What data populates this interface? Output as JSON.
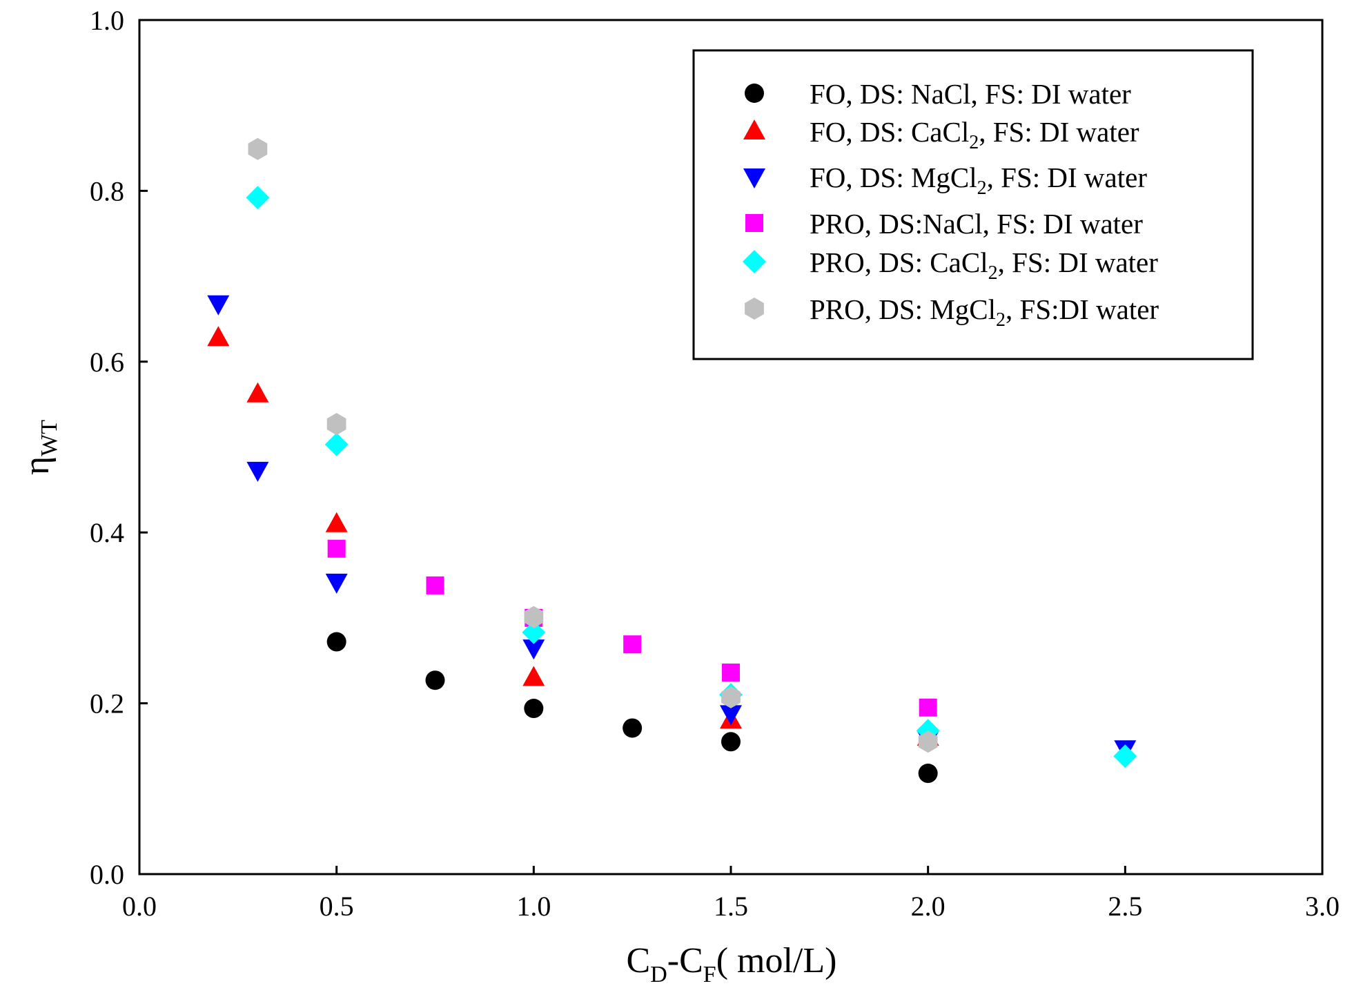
{
  "chart_data": {
    "type": "scatter",
    "title": "",
    "xlabel": {
      "main": "C",
      "sub1": "D",
      "mid": "-C",
      "sub2": "F",
      "tail": "( mol/L)"
    },
    "ylabel": {
      "main": "η",
      "sub": "WT"
    },
    "xlim": [
      0,
      3.0
    ],
    "ylim": [
      0,
      1.0
    ],
    "xticks": [
      "0.0",
      "0.5",
      "1.0",
      "1.5",
      "2.0",
      "2.5",
      "3.0"
    ],
    "yticks": [
      "0.0",
      "0.2",
      "0.4",
      "0.6",
      "0.8",
      "1.0"
    ],
    "grid": false,
    "legend_position": "top-right",
    "series": [
      {
        "name": "FO, DS: NaCl, FS: DI water",
        "label": {
          "pre": "FO, DS: NaCl, FS: DI water",
          "sub": "",
          "post": ""
        },
        "marker": "circle",
        "color": "#000000",
        "x": [
          0.5,
          0.75,
          1.0,
          1.25,
          1.5,
          2.0
        ],
        "y": [
          0.272,
          0.227,
          0.194,
          0.171,
          0.155,
          0.118
        ]
      },
      {
        "name": "FO, DS: CaCl2, FS: DI water",
        "label": {
          "pre": "FO, DS: CaCl",
          "sub": "2",
          "post": ", FS: DI water"
        },
        "marker": "triangle-up",
        "color": "#ff0000",
        "x": [
          0.2,
          0.3,
          0.5,
          1.0,
          1.5,
          2.0
        ],
        "y": [
          0.628,
          0.562,
          0.41,
          0.23,
          0.18,
          0.16
        ]
      },
      {
        "name": "FO, DS: MgCl2, FS: DI water",
        "label": {
          "pre": "FO, DS: MgCl",
          "sub": "2",
          "post": ", FS: DI water"
        },
        "marker": "triangle-down",
        "color": "#0000ff",
        "x": [
          0.2,
          0.3,
          0.5,
          1.0,
          1.5,
          2.0,
          2.5
        ],
        "y": [
          0.668,
          0.473,
          0.342,
          0.265,
          0.188,
          0.158,
          0.147
        ]
      },
      {
        "name": "PRO, DS:NaCl, FS: DI water",
        "label": {
          "pre": "PRO, DS:NaCl, FS: DI water",
          "sub": "",
          "post": ""
        },
        "marker": "square",
        "color": "#ff00ff",
        "x": [
          0.5,
          0.75,
          1.0,
          1.25,
          1.5,
          2.0
        ],
        "y": [
          0.381,
          0.338,
          0.3,
          0.269,
          0.236,
          0.195
        ]
      },
      {
        "name": "PRO, DS: CaCl2, FS: DI water",
        "label": {
          "pre": "PRO, DS: CaCl",
          "sub": "2",
          "post": ", FS: DI water"
        },
        "marker": "diamond",
        "color": "#00ffff",
        "x": [
          0.3,
          0.5,
          1.0,
          1.5,
          2.0,
          2.5
        ],
        "y": [
          0.792,
          0.503,
          0.283,
          0.21,
          0.168,
          0.138
        ]
      },
      {
        "name": "PRO, DS: MgCl2, FS:DI water",
        "label": {
          "pre": "PRO, DS: MgCl",
          "sub": "2",
          "post": ", FS:DI water"
        },
        "marker": "hexagon",
        "color": "#c0c0c0",
        "x": [
          0.3,
          0.5,
          1.0,
          1.5,
          2.0
        ],
        "y": [
          0.849,
          0.527,
          0.301,
          0.207,
          0.155
        ]
      }
    ]
  }
}
